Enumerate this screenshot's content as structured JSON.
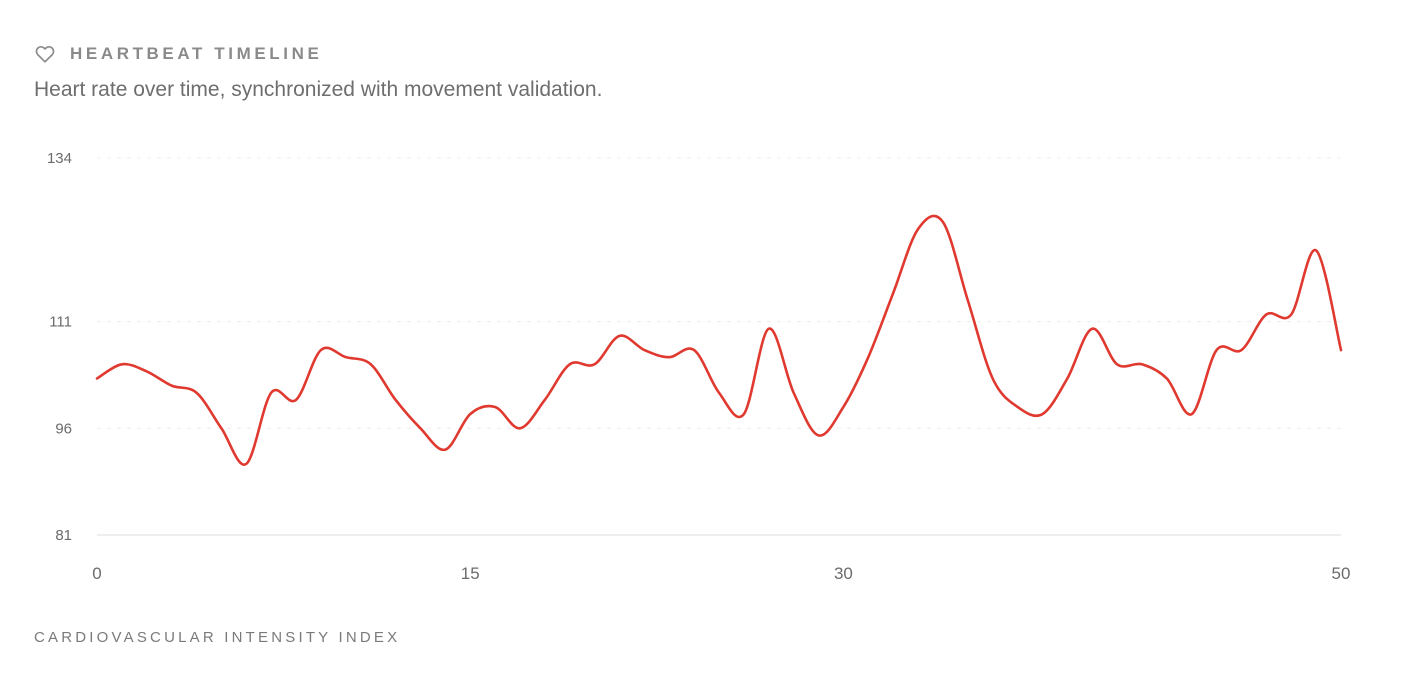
{
  "header": {
    "title": "HEARTBEAT TIMELINE",
    "subtitle": "Heart rate over time, synchronized with movement validation.",
    "icon": "heart-icon"
  },
  "footer": {
    "label": "CARDIOVASCULAR INTENSITY INDEX"
  },
  "colors": {
    "line": "#e0392f",
    "grid": "#ececec",
    "axis": "#e3e3e3",
    "text": "#6b6b6b"
  },
  "chart_data": {
    "type": "line",
    "title": "",
    "xlabel": "",
    "ylabel": "",
    "xlim": [
      0,
      50
    ],
    "ylim": [
      81,
      134
    ],
    "x_ticks": [
      "0",
      "15",
      "30",
      "50"
    ],
    "y_ticks": [
      "134",
      "111",
      "96",
      "81"
    ],
    "grid": true,
    "series": [
      {
        "x": [
          0,
          1,
          2,
          3,
          4,
          5,
          6,
          7,
          8,
          9,
          10,
          11,
          12,
          13,
          14,
          15,
          16,
          17,
          18,
          19,
          20,
          21,
          22,
          23,
          24,
          25,
          26,
          27,
          28,
          29,
          30,
          31,
          32,
          33,
          34,
          35,
          36,
          37,
          38,
          39,
          40,
          41,
          42,
          43,
          44,
          45,
          46,
          47,
          48,
          49,
          50
        ],
        "values": [
          103,
          105,
          104,
          102,
          101,
          96,
          91,
          101,
          100,
          107,
          106,
          105,
          100,
          96,
          93,
          98,
          99,
          96,
          100,
          105,
          105,
          109,
          107,
          106,
          107,
          101,
          98,
          110,
          101,
          95,
          99,
          106,
          115,
          124,
          125,
          114,
          103,
          99,
          98,
          103,
          110,
          105,
          105,
          103,
          98,
          107,
          107,
          112,
          112,
          121,
          107
        ]
      }
    ]
  }
}
